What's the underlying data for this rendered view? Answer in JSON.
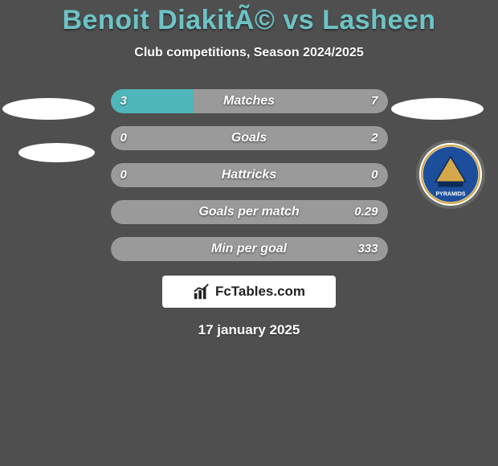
{
  "header": {
    "title": "Benoit DiakitÃ© vs Lasheen",
    "subtitle": "Club competitions, Season 2024/2025"
  },
  "colors": {
    "background": "#4f4f4f",
    "accent": "#6dc3c6",
    "bar_fill": "#4fb6b9",
    "bar_bg": "#9a9a9a",
    "text": "#ffffff"
  },
  "rows": [
    {
      "label": "Matches",
      "left": "3",
      "right": "7",
      "left_pct": 30,
      "right_pct": 0
    },
    {
      "label": "Goals",
      "left": "0",
      "right": "2",
      "left_pct": 0,
      "right_pct": 0
    },
    {
      "label": "Hattricks",
      "left": "0",
      "right": "0",
      "left_pct": 0,
      "right_pct": 0
    },
    {
      "label": "Goals per match",
      "left": "",
      "right": "0.29",
      "left_pct": 0,
      "right_pct": 0
    },
    {
      "label": "Min per goal",
      "left": "",
      "right": "333",
      "left_pct": 0,
      "right_pct": 0
    }
  ],
  "brand": {
    "text": "FcTables.com"
  },
  "date": "17 january 2025",
  "crest": {
    "name": "Pyramids",
    "primary_color": "#1c4e9c",
    "secondary_color": "#d4a84a"
  }
}
